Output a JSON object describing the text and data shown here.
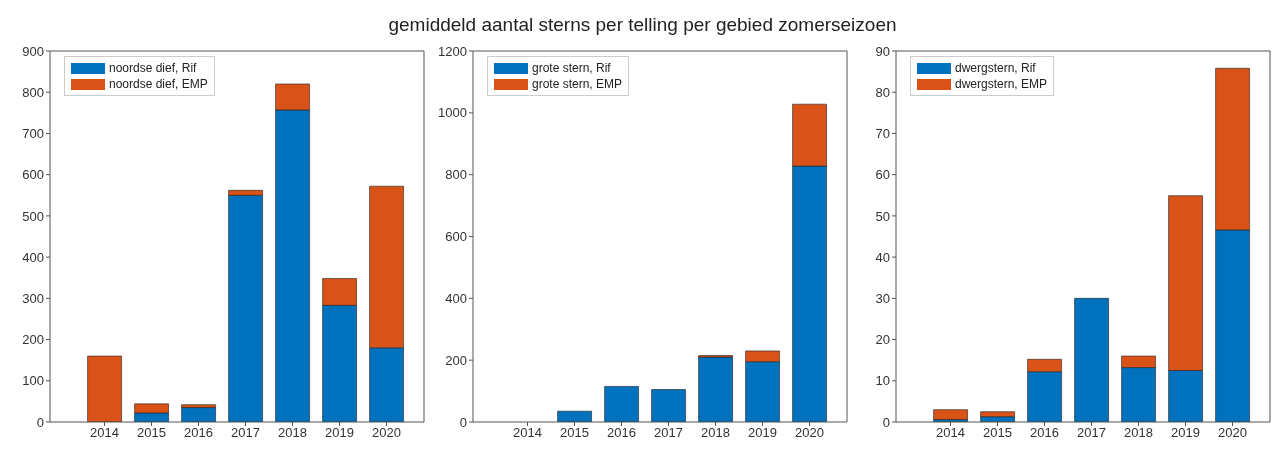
{
  "chart_data": [
    {
      "type": "bar",
      "stacked": true,
      "categories": [
        "2014",
        "2015",
        "2016",
        "2017",
        "2018",
        "2019",
        "2020"
      ],
      "ylim": [
        0,
        900
      ],
      "yticks": [
        0,
        100,
        200,
        300,
        400,
        500,
        600,
        700,
        800,
        900
      ],
      "legend": "top left",
      "grid": false,
      "series": [
        {
          "name": "noordse dief, Rif",
          "color": "#0072bd",
          "values": [
            0,
            22,
            35,
            550,
            757,
            283,
            180
          ]
        },
        {
          "name": "noordse dief, EMP",
          "color": "#d95319",
          "values": [
            160,
            22,
            7,
            12,
            63,
            65,
            392
          ]
        }
      ]
    },
    {
      "type": "bar",
      "stacked": true,
      "title": "gemiddeld aantal sterns per telling per gebied zomerseizoen",
      "categories": [
        "2014",
        "2015",
        "2016",
        "2017",
        "2018",
        "2019",
        "2020"
      ],
      "ylim": [
        0,
        1200
      ],
      "yticks": [
        0,
        200,
        400,
        600,
        800,
        1000,
        1200
      ],
      "legend": "top left",
      "grid": false,
      "series": [
        {
          "name": "grote stern, Rif",
          "color": "#0072bd",
          "values": [
            0,
            35,
            115,
            105,
            210,
            195,
            828
          ]
        },
        {
          "name": "grote stern, EMP",
          "color": "#d95319",
          "values": [
            0,
            0,
            0,
            0,
            5,
            35,
            200
          ]
        }
      ]
    },
    {
      "type": "bar",
      "stacked": true,
      "categories": [
        "2014",
        "2015",
        "2016",
        "2017",
        "2018",
        "2019",
        "2020"
      ],
      "ylim": [
        0,
        90
      ],
      "yticks": [
        0,
        10,
        20,
        30,
        40,
        50,
        60,
        70,
        80,
        90
      ],
      "legend": "top left",
      "grid": false,
      "series": [
        {
          "name": "dwergstern, Rif",
          "color": "#0072bd",
          "values": [
            0.6,
            1.3,
            12.2,
            30,
            13.2,
            12.5,
            46.6
          ]
        },
        {
          "name": "dwergstern, EMP",
          "color": "#d95319",
          "values": [
            2.4,
            1.2,
            3,
            0,
            2.8,
            42.4,
            39.2
          ]
        }
      ]
    }
  ]
}
